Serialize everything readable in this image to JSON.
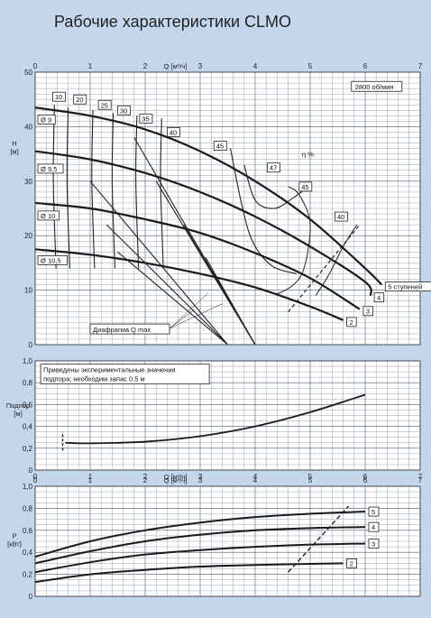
{
  "title": "Рабочие характеристики CLMO",
  "chart_data": [
    {
      "type": "line",
      "name": "head",
      "x_axis_label": "Q [м³/ч]",
      "y_axis_label": "H [м]",
      "xlim": [
        0,
        7
      ],
      "ylim": [
        0,
        50
      ],
      "x_ticks": [
        "0",
        "1",
        "2",
        "3",
        "4",
        "5",
        "6",
        "7"
      ],
      "y_ticks": [
        "0",
        "10",
        "20",
        "30",
        "40",
        "50"
      ],
      "speed_label": "2800 об/мин",
      "series": [
        {
          "name": "5 ступеней",
          "x": [
            0,
            1,
            2,
            3,
            4,
            5,
            6,
            6.3
          ],
          "y": [
            43.5,
            42,
            39.5,
            35.5,
            30,
            23,
            14,
            11
          ]
        },
        {
          "name": "4",
          "x": [
            0,
            1,
            2,
            3,
            4,
            5,
            6,
            6.1
          ],
          "y": [
            35.5,
            34,
            31.5,
            28,
            23.5,
            18,
            11.5,
            9
          ]
        },
        {
          "name": "3",
          "x": [
            0,
            1,
            2,
            3,
            4,
            5,
            5.9
          ],
          "y": [
            26,
            25,
            23,
            20.5,
            16.8,
            12.2,
            6.5
          ]
        },
        {
          "name": "2",
          "x": [
            0,
            1,
            2,
            3,
            4,
            5,
            5.6
          ],
          "y": [
            17.5,
            16.5,
            15,
            13,
            10.5,
            7,
            4.5
          ]
        }
      ],
      "efficiency_label": "η %",
      "efficiency_values": [
        "10",
        "20",
        "25",
        "30",
        "35",
        "40",
        "45",
        "47",
        "45",
        "40"
      ],
      "impeller_labels": [
        "Ø 9",
        "Ø 9,5",
        "Ø 10",
        "Ø 10,5"
      ],
      "annotation": "Диафрагма Q max"
    },
    {
      "type": "line",
      "name": "npsh",
      "x_axis_label": "",
      "y_axis_label": "Подпор [м]",
      "xlim": [
        0,
        7
      ],
      "ylim": [
        0,
        1.0
      ],
      "y_ticks": [
        "0",
        "0,2",
        "0,4",
        "0,6",
        "0,8",
        "1,0"
      ],
      "note": "Приведены экспериментальные значения подпора; необходим запас 0,5 м",
      "series": [
        {
          "x": [
            0.55,
            1,
            2,
            3,
            4,
            5,
            6
          ],
          "y": [
            0.25,
            0.245,
            0.26,
            0.31,
            0.4,
            0.53,
            0.69
          ]
        }
      ]
    },
    {
      "type": "line",
      "name": "power",
      "x_axis_label": "Q [м³/ч]",
      "y_axis_label": "P [кВт]",
      "xlim": [
        0,
        7
      ],
      "ylim": [
        0,
        1.0
      ],
      "x_ticks": [
        "0",
        "1",
        "2",
        "3",
        "4",
        "5",
        "6",
        "7"
      ],
      "y_ticks": [
        "0",
        "0,2",
        "0,4",
        "0,6",
        "0,8",
        "1,0"
      ],
      "series": [
        {
          "name": "5",
          "x": [
            0,
            1,
            2,
            3,
            4,
            5,
            6
          ],
          "y": [
            0.36,
            0.5,
            0.6,
            0.67,
            0.72,
            0.75,
            0.77
          ]
        },
        {
          "name": "4",
          "x": [
            0,
            1,
            2,
            3,
            4,
            5,
            6
          ],
          "y": [
            0.3,
            0.41,
            0.5,
            0.56,
            0.6,
            0.62,
            0.63
          ]
        },
        {
          "name": "3",
          "x": [
            0,
            1,
            2,
            3,
            4,
            5,
            6
          ],
          "y": [
            0.22,
            0.31,
            0.38,
            0.42,
            0.45,
            0.47,
            0.48
          ]
        },
        {
          "name": "2",
          "x": [
            0,
            1,
            2,
            3,
            4,
            5,
            5.6
          ],
          "y": [
            0.13,
            0.2,
            0.24,
            0.27,
            0.285,
            0.295,
            0.3
          ]
        }
      ]
    }
  ]
}
